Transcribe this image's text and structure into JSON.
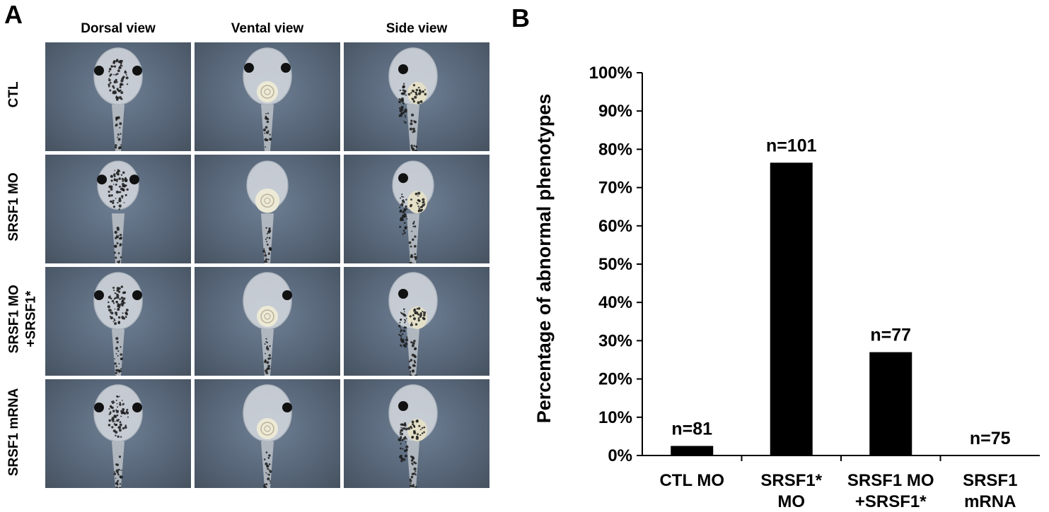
{
  "panel_a": {
    "letter": "A",
    "column_headers": [
      "Dorsal view",
      "Vental view",
      "Side view"
    ],
    "row_labels": [
      [
        "CTL"
      ],
      [
        "SRSF1 MO"
      ],
      [
        "SRSF1 MO",
        "+SRSF1*"
      ],
      [
        "SRSF1 mRNA"
      ]
    ]
  },
  "panel_b": {
    "letter": "B"
  },
  "chart_data": {
    "type": "bar",
    "ylabel": "Percentage of abnormal phenotypes",
    "xlabel": "",
    "ylim": [
      0,
      100
    ],
    "yticks": [
      0,
      10,
      20,
      30,
      40,
      50,
      60,
      70,
      80,
      90,
      100
    ],
    "ytick_labels": [
      "0%",
      "10%",
      "20%",
      "30%",
      "40%",
      "50%",
      "60%",
      "70%",
      "80%",
      "90%",
      "100%"
    ],
    "categories": [
      [
        "CTL MO"
      ],
      [
        "SRSF1*",
        "MO"
      ],
      [
        "SRSF1 MO",
        "+SRSF1*"
      ],
      [
        "SRSF1",
        "mRNA"
      ]
    ],
    "values": [
      2.5,
      76.5,
      27,
      0
    ],
    "data_labels": [
      "n=81",
      "n=101",
      "n=77",
      "n=75"
    ],
    "bar_color": "#000000",
    "grid": false,
    "legend": "none"
  }
}
